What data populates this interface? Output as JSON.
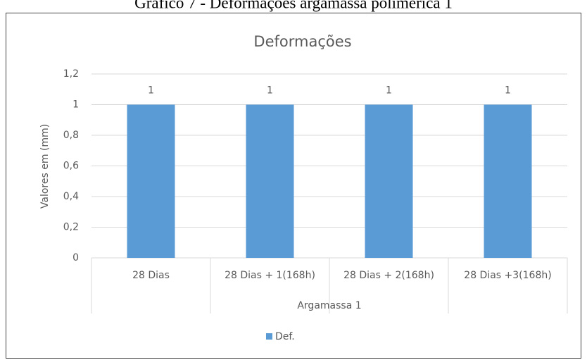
{
  "caption": "Gráfico 7 - Deformações argamassa polimérica 1",
  "chart_data": {
    "type": "bar",
    "title": "Deformações",
    "y_label": "Valores em (mm)",
    "x_label": "Argamassa 1",
    "categories": [
      "28 Dias",
      "28 Dias + 1(168h)",
      "28 Dias + 2(168h)",
      "28 Dias +3(168h)"
    ],
    "series": [
      {
        "name": "Def.",
        "color": "#5b9bd5",
        "values": [
          1,
          1,
          1,
          1
        ]
      }
    ],
    "ylim": [
      0,
      1.2
    ],
    "yticks": [
      0,
      {
        "value": 0.2,
        "label": "0,2"
      },
      {
        "value": 0.4,
        "label": "0,4"
      },
      {
        "value": 0.6,
        "label": "0,6"
      },
      {
        "value": 0.8,
        "label": "0,8"
      },
      1,
      {
        "value": 1.2,
        "label": "1,2"
      }
    ],
    "grid": true,
    "legend": "bottom"
  }
}
